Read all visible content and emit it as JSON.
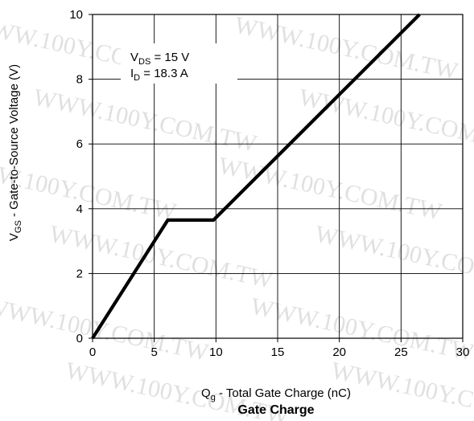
{
  "chart_data": {
    "type": "line",
    "title": "Gate Charge",
    "xlabel": {
      "main": "Q",
      "sub": "g",
      "rest": " - Total Gate Charge (nC)"
    },
    "ylabel": {
      "main": "V",
      "sub": "GS",
      "rest": "  - Gate-to-Source Voltage (V)"
    },
    "xlim": [
      0,
      30
    ],
    "ylim": [
      0,
      10
    ],
    "xticks": [
      0,
      5,
      10,
      15,
      20,
      25,
      30
    ],
    "yticks": [
      0,
      2,
      4,
      6,
      8,
      10
    ],
    "xtick_labels": [
      "0",
      "5",
      "10",
      "15",
      "20",
      "25",
      "30"
    ],
    "ytick_labels": [
      "0",
      "2",
      "4",
      "6",
      "8",
      "10"
    ],
    "grid": true,
    "series": [
      {
        "x": [
          0,
          6.1,
          9.8,
          26.5
        ],
        "y": [
          0,
          3.65,
          3.65,
          10
        ]
      }
    ],
    "annotations": [
      {
        "main": "V",
        "sub": "DS",
        "rest": " = 15 V"
      },
      {
        "main": "I",
        "sub": "D",
        "rest": " =  18.3 A"
      }
    ],
    "watermark": "WWW.100Y.COM.TW"
  }
}
